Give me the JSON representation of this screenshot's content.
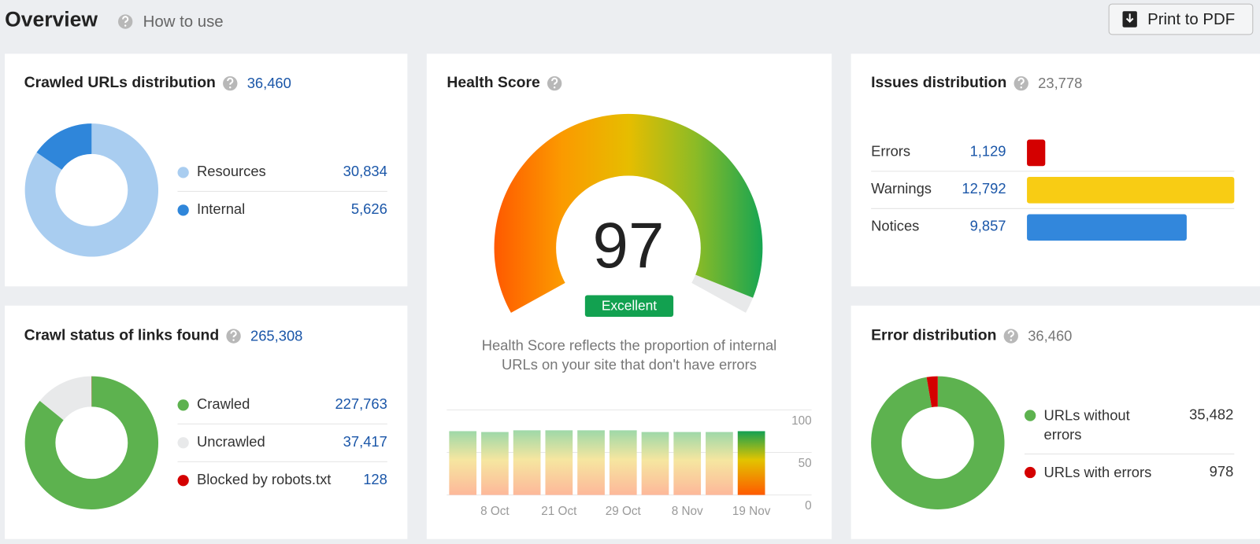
{
  "header": {
    "title": "Overview",
    "help_link": "How to use",
    "print_button": "Print to PDF"
  },
  "crawled_urls": {
    "type": "donut",
    "title": "Crawled URLs distribution",
    "total": "36,460",
    "items": [
      {
        "name": "Resources",
        "value": 30834,
        "value_label": "30,834",
        "color": "#a9cdf0"
      },
      {
        "name": "Internal",
        "value": 5626,
        "value_label": "5,626",
        "color": "#2f86da"
      }
    ]
  },
  "crawl_status": {
    "type": "donut",
    "title": "Crawl status of links found",
    "total": "265,308",
    "items": [
      {
        "name": "Crawled",
        "value": 227763,
        "value_label": "227,763",
        "color": "#5db24f"
      },
      {
        "name": "Uncrawled",
        "value": 37417,
        "value_label": "37,417",
        "color": "#e8e9ea"
      },
      {
        "name": "Blocked by robots.txt",
        "value": 128,
        "value_label": "128",
        "color": "#d40000"
      }
    ]
  },
  "health_score": {
    "type": "gauge",
    "title": "Health Score",
    "value": 97,
    "range": [
      0,
      100
    ],
    "rating": "Excellent",
    "description": [
      "Health Score reflects the proportion of internal",
      "URLs on your site that don't have errors"
    ],
    "history": {
      "type": "bar",
      "categories": [
        null,
        "8 Oct",
        null,
        "21 Oct",
        null,
        "29 Oct",
        null,
        "8 Nov",
        null,
        "19 Nov"
      ],
      "values": [
        75,
        74,
        76,
        76,
        76,
        76,
        74,
        74,
        74,
        75
      ],
      "ylim": [
        0,
        100
      ],
      "yticks": [
        0,
        50,
        100
      ],
      "grid": true
    }
  },
  "issues": {
    "type": "hbar",
    "title": "Issues distribution",
    "total": "23,778",
    "items": [
      {
        "name": "Errors",
        "value": 1129,
        "value_label": "1,129",
        "color": "#d40000"
      },
      {
        "name": "Warnings",
        "value": 12792,
        "value_label": "12,792",
        "color": "#f8cc14"
      },
      {
        "name": "Notices",
        "value": 9857,
        "value_label": "9,857",
        "color": "#3287dc"
      }
    ]
  },
  "error_distribution": {
    "type": "donut",
    "title": "Error distribution",
    "total": "36,460",
    "items": [
      {
        "name": "URLs without errors",
        "value": 35482,
        "value_label": "35,482",
        "color": "#5db24f"
      },
      {
        "name": "URLs with errors",
        "value": 978,
        "value_label": "978",
        "color": "#d40000"
      }
    ]
  }
}
